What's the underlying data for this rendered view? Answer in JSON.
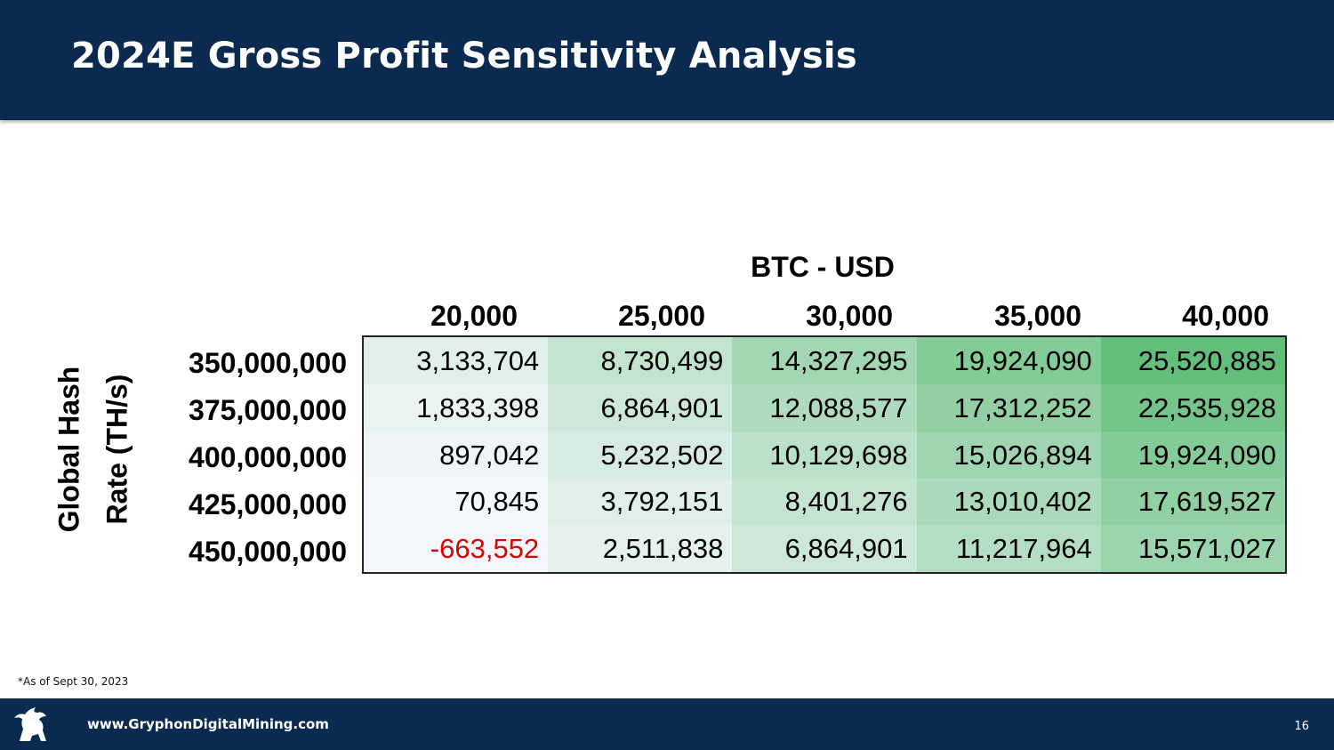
{
  "title": "2024E Gross Profit Sensitivity Analysis",
  "table": {
    "column_axis_label": "BTC - USD",
    "row_axis_label_line1": "Global Hash",
    "row_axis_label_line2": "Rate (TH/s)",
    "columns": [
      "20,000",
      "25,000",
      "30,000",
      "35,000",
      "40,000"
    ],
    "rows": [
      {
        "label": "350,000,000",
        "values": [
          "3,133,704",
          "8,730,499",
          "14,327,295",
          "19,924,090",
          "25,520,885"
        ]
      },
      {
        "label": "375,000,000",
        "values": [
          "1,833,398",
          "6,864,901",
          "12,088,577",
          "17,312,252",
          "22,535,928"
        ]
      },
      {
        "label": "400,000,000",
        "values": [
          "897,042",
          "5,232,502",
          "10,129,698",
          "15,026,894",
          "19,924,090"
        ]
      },
      {
        "label": "425,000,000",
        "values": [
          "70,845",
          "3,792,151",
          "8,401,276",
          "13,010,402",
          "17,619,527"
        ]
      },
      {
        "label": "450,000,000",
        "values": [
          "-663,552",
          "2,511,838",
          "6,864,901",
          "11,217,964",
          "15,571,027"
        ]
      }
    ]
  },
  "colors": {
    "header_bg": "#0a2a50",
    "negative_text": "#e00000",
    "heat_low": "#f4f7fb",
    "heat_high": "#63be7b"
  },
  "footnote": "*As of Sept 30, 2023",
  "footer": {
    "url": "www.GryphonDigitalMining.com",
    "page_number": "16",
    "logo_icon": "gryphon-logo-icon"
  }
}
